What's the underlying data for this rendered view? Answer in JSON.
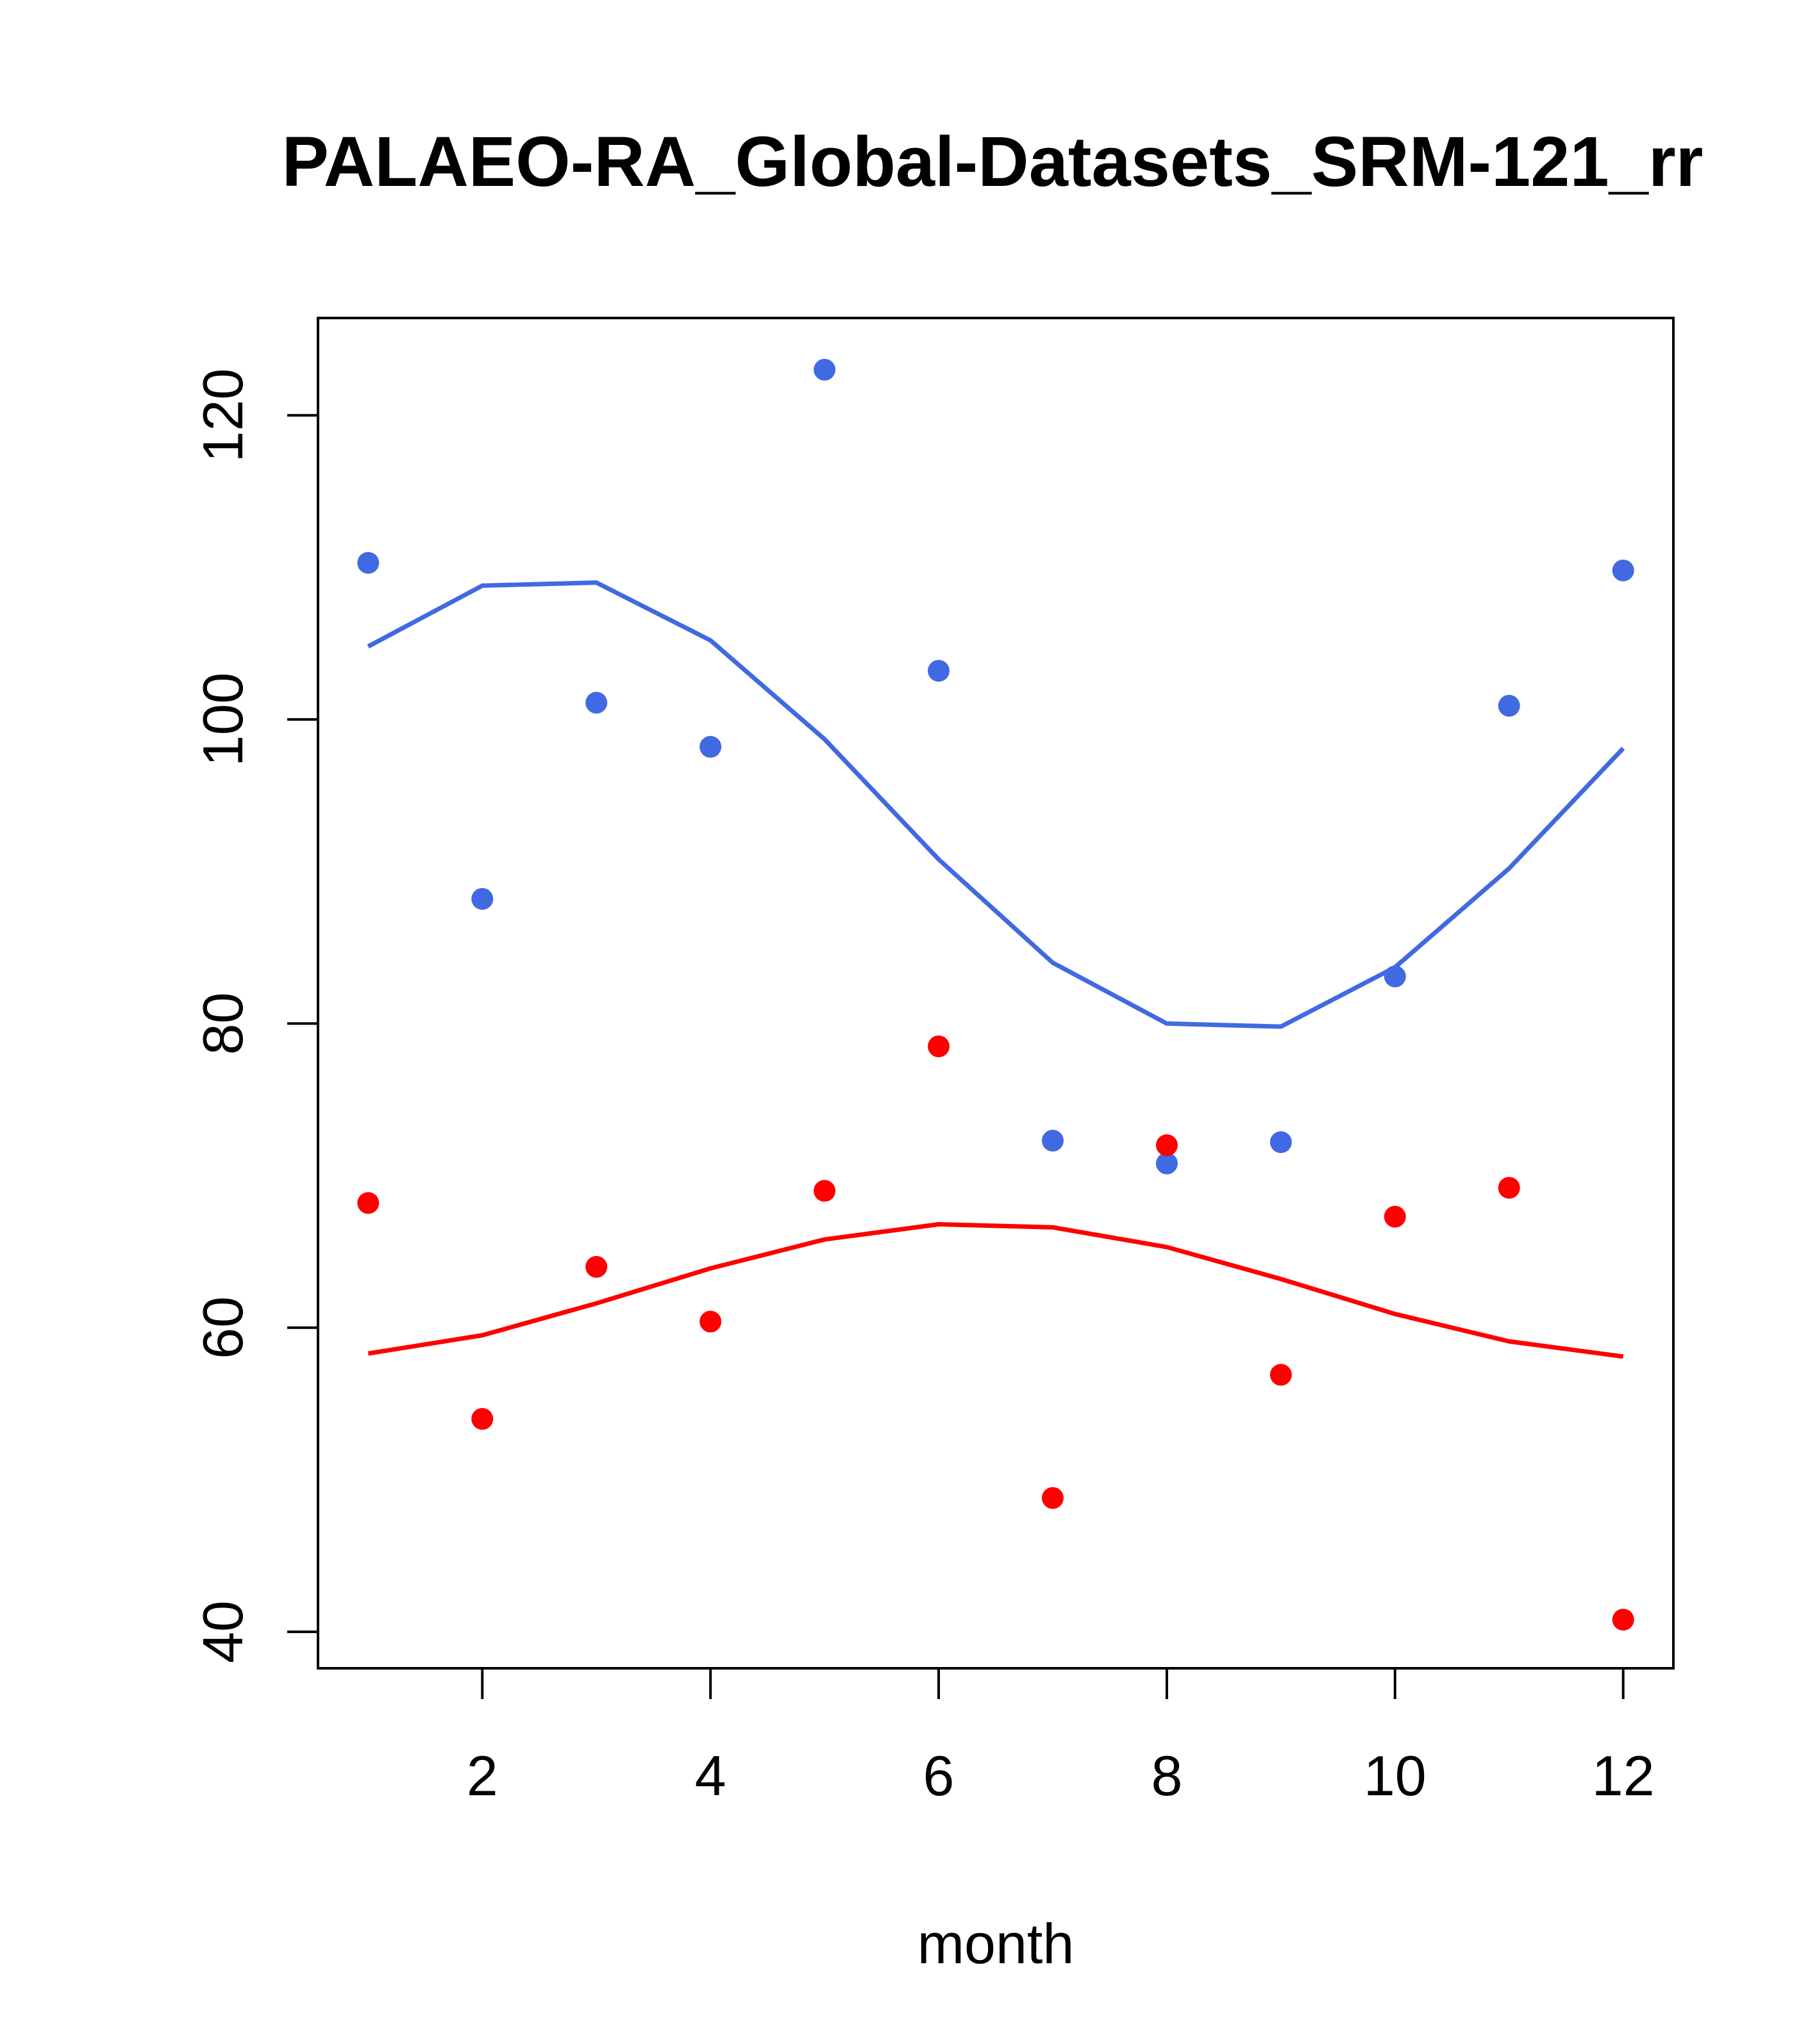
{
  "chart_data": {
    "type": "scatter",
    "title": "PALAEO-RA_Global-Datasets_SRM-121_rr",
    "xlabel": "month",
    "ylabel": "",
    "xlim": [
      0.56,
      12.44
    ],
    "ylim": [
      37.6,
      126.4
    ],
    "xticks": [
      2,
      4,
      6,
      8,
      10,
      12
    ],
    "yticks": [
      40,
      60,
      80,
      100,
      120
    ],
    "grid": false,
    "legend": "none",
    "x": [
      1,
      2,
      3,
      4,
      5,
      6,
      7,
      8,
      9,
      10,
      11,
      12
    ],
    "series": [
      {
        "name": "blue-points",
        "color": "#4169E1",
        "kind": "points",
        "values": [
          110.3,
          88.2,
          101.1,
          98.2,
          123.0,
          103.2,
          72.3,
          70.8,
          72.2,
          83.1,
          100.9,
          109.8
        ]
      },
      {
        "name": "blue-smooth",
        "color": "#4169E1",
        "kind": "line",
        "values": [
          104.8,
          108.8,
          109.0,
          105.2,
          98.7,
          90.8,
          84.0,
          80.0,
          79.8,
          83.7,
          90.2,
          98.1
        ]
      },
      {
        "name": "red-points",
        "color": "#FF0000",
        "kind": "points",
        "values": [
          68.2,
          54.0,
          64.0,
          60.4,
          69.0,
          78.5,
          48.8,
          72.0,
          56.9,
          67.3,
          69.2,
          40.8
        ]
      },
      {
        "name": "red-smooth",
        "color": "#FF0000",
        "kind": "line",
        "values": [
          58.3,
          59.5,
          61.6,
          63.9,
          65.8,
          66.8,
          66.6,
          65.3,
          63.2,
          60.9,
          59.1,
          58.1
        ]
      }
    ]
  }
}
